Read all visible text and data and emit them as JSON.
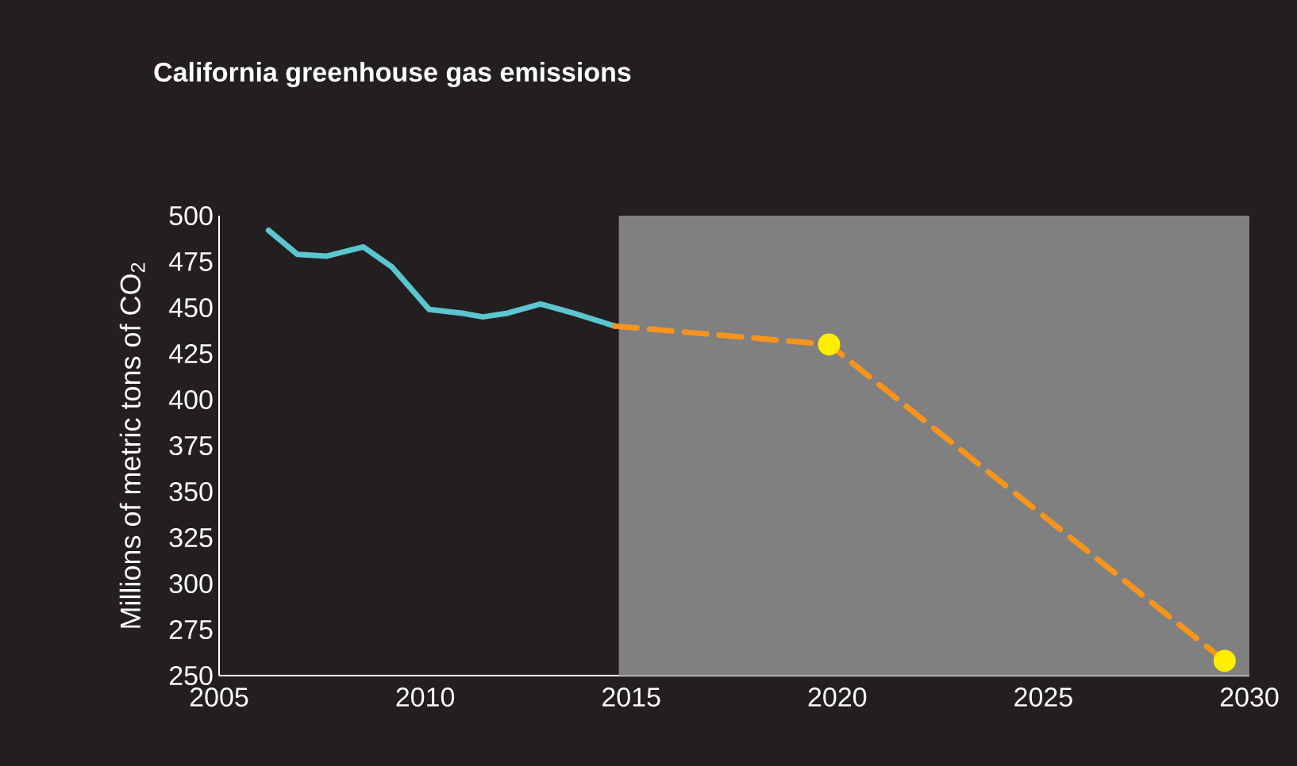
{
  "chart_data": {
    "type": "line",
    "title": "California greenhouse gas emissions",
    "ylabel": "Millions of metric tons of CO$_{2}$",
    "xlim": [
      2005,
      2030
    ],
    "xticks": [
      2005,
      2010,
      2015,
      2020,
      2025,
      2030
    ],
    "ylim": [
      250,
      500
    ],
    "yticks": [
      250,
      275,
      300,
      325,
      350,
      375,
      400,
      425,
      450,
      475,
      500
    ],
    "bands": [
      {
        "axis": "x",
        "from": 2014.7,
        "to": 2030,
        "color": "#808080"
      }
    ],
    "series": [
      {
        "color": "#5bc5d0",
        "line_style": "solid",
        "x": [
          2006.2,
          2006.9,
          2007.6,
          2008.5,
          2009.2,
          2010.1,
          2010.9,
          2011.4,
          2012.0,
          2012.8,
          2013.6,
          2014.6
        ],
        "values": [
          492,
          479,
          478,
          483,
          472,
          449,
          447,
          445,
          447,
          452,
          447,
          440
        ]
      },
      {
        "color": "#f7941d",
        "line_style": "dashed",
        "x": [
          2014.6,
          2019.8,
          2029.4
        ],
        "values": [
          440,
          430,
          258
        ]
      },
      {
        "type": "scatter",
        "color": "#ffee00",
        "x": [
          2019.8,
          2029.4
        ],
        "values": [
          430,
          258
        ]
      }
    ]
  }
}
